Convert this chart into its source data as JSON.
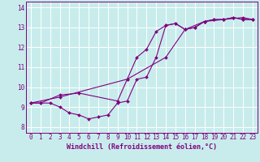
{
  "xlabel": "Windchill (Refroidissement éolien,°C)",
  "xlim": [
    -0.5,
    23.5
  ],
  "ylim": [
    7.7,
    14.3
  ],
  "xticks": [
    0,
    1,
    2,
    3,
    4,
    5,
    6,
    7,
    8,
    9,
    10,
    11,
    12,
    13,
    14,
    15,
    16,
    17,
    18,
    19,
    20,
    21,
    22,
    23
  ],
  "yticks": [
    8,
    9,
    10,
    11,
    12,
    13,
    14
  ],
  "bg_color": "#c8ecec",
  "line_color": "#800080",
  "grid_color": "#ffffff",
  "line1_x": [
    0,
    1,
    2,
    3,
    4,
    5,
    6,
    7,
    8,
    9,
    10,
    11,
    12,
    13,
    14,
    15,
    16,
    17,
    18,
    19,
    20,
    21,
    22,
    23
  ],
  "line1_y": [
    9.2,
    9.2,
    9.2,
    9.0,
    8.7,
    8.6,
    8.4,
    8.5,
    8.6,
    9.2,
    9.3,
    10.4,
    10.5,
    11.5,
    13.1,
    13.2,
    12.9,
    13.0,
    13.3,
    13.4,
    13.4,
    13.5,
    13.4,
    13.4
  ],
  "line2_x": [
    0,
    1,
    3,
    5,
    9,
    10,
    11,
    12,
    13,
    14,
    15,
    16,
    17,
    18,
    19,
    20,
    21,
    22,
    23
  ],
  "line2_y": [
    9.2,
    9.2,
    9.6,
    9.7,
    9.3,
    10.4,
    11.5,
    11.9,
    12.8,
    13.1,
    13.2,
    12.9,
    13.0,
    13.3,
    13.4,
    13.4,
    13.5,
    13.4,
    13.4
  ],
  "line3_x": [
    0,
    3,
    10,
    14,
    16,
    18,
    20,
    22,
    23
  ],
  "line3_y": [
    9.2,
    9.5,
    10.4,
    11.5,
    12.9,
    13.3,
    13.4,
    13.5,
    13.4
  ],
  "tick_fontsize": 5.5,
  "xlabel_fontsize": 6.0,
  "marker_size": 2.0,
  "line_width": 0.8
}
